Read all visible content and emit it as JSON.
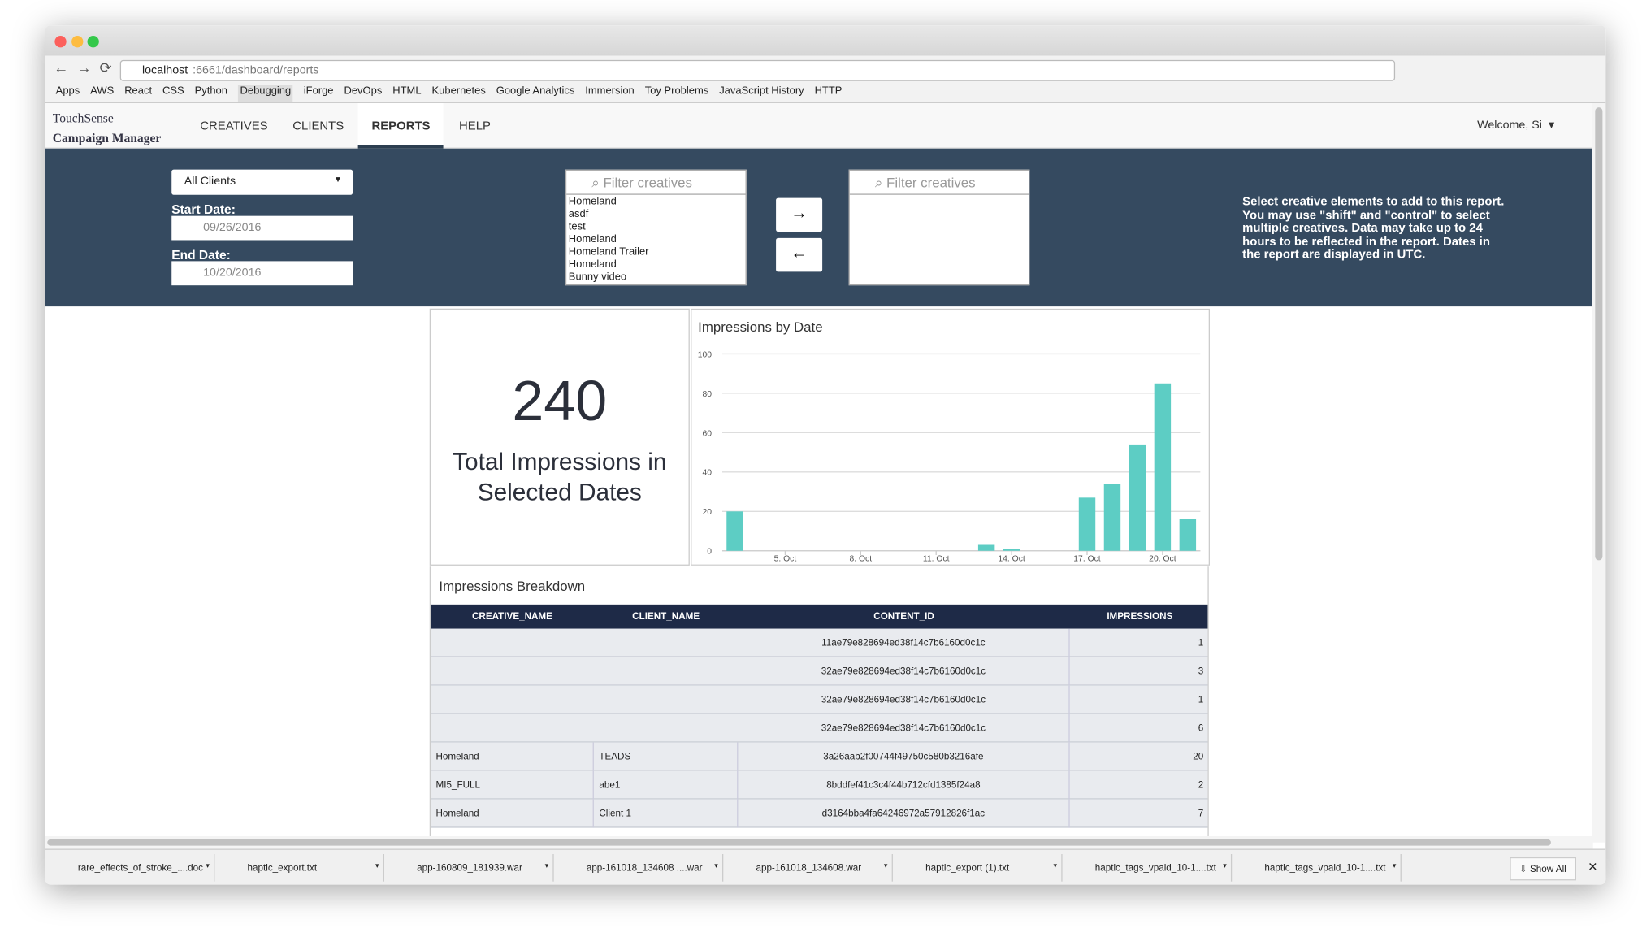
{
  "browser": {
    "url_host": "localhost",
    "url_rest": ":6661/dashboard/reports",
    "bookmarks": [
      "Apps",
      "AWS",
      "React",
      "CSS",
      "Python",
      "Debugging",
      "iForge",
      "DevOps",
      "HTML",
      "Kubernetes",
      "Google Analytics",
      "Immersion",
      "Toy Problems",
      "JavaScript History",
      "HTTP"
    ]
  },
  "app": {
    "brand_1": "TouchSense",
    "brand_2": "Campaign Manager",
    "nav": [
      "CREATIVES",
      "CLIENTS",
      "REPORTS",
      "HELP"
    ],
    "welcome": "Welcome, Si"
  },
  "filters": {
    "client": "All Clients",
    "start_label": "Start Date:",
    "start": "09/26/2016",
    "end_label": "End Date:",
    "end": "10/20/2016",
    "filter_placeholder": "Filter creatives",
    "creatives": [
      "Homeland",
      "asdf",
      "test",
      "Homeland",
      "Homeland Trailer",
      "Homeland",
      "Bunny video"
    ],
    "help": "Select creative elements to add to this report. You may use \"shift\" and \"control\" to select multiple creatives. Data may take up to 24 hours to be reflected in the report. Dates in the report are displayed in UTC."
  },
  "total": {
    "value": 240,
    "label": "Total Impressions in Selected Dates"
  },
  "chart_data": {
    "type": "bar",
    "title": "Impressions by Date",
    "color": "#5dcdc4",
    "grid": true,
    "x": [
      3,
      13,
      14,
      17,
      18,
      19,
      20,
      21
    ],
    "values": [
      20,
      3,
      1,
      27,
      34,
      54,
      85,
      16
    ],
    "xlim": [
      2.5,
      21.5
    ],
    "xticks": [
      {
        "value": 5,
        "label": "5. Oct"
      },
      {
        "value": 8,
        "label": "8. Oct"
      },
      {
        "value": 11,
        "label": "11. Oct"
      },
      {
        "value": 14,
        "label": "14. Oct"
      },
      {
        "value": 17,
        "label": "17. Oct"
      },
      {
        "value": 20,
        "label": "20. Oct"
      }
    ],
    "ylim": [
      0,
      100
    ],
    "yticks": [
      0,
      20,
      40,
      60,
      80,
      100
    ]
  },
  "table": {
    "title": "Impressions Breakdown",
    "columns": [
      "CREATIVE_NAME",
      "CLIENT_NAME",
      "CONTENT_ID",
      "IMPRESSIONS"
    ],
    "rows": [
      [
        null,
        null,
        "11ae79e828694ed38f14c7b6160d0c1c",
        1
      ],
      [
        null,
        null,
        "32ae79e828694ed38f14c7b6160d0c1c",
        3
      ],
      [
        null,
        null,
        "32ae79e828694ed38f14c7b6160d0c1c",
        1
      ],
      [
        null,
        null,
        "32ae79e828694ed38f14c7b6160d0c1c",
        6
      ],
      [
        "Homeland",
        "TEADS",
        "3a26aab2f00744f49750c580b3216afe",
        20
      ],
      [
        "MI5_FULL",
        "abe1",
        "8bddfef41c3c4f44b712cfd1385f24a8",
        2
      ],
      [
        "Homeland",
        "Client 1",
        "d3164bba4fa64246972a57912826f1ac",
        7
      ]
    ]
  },
  "downloads": {
    "items": [
      "rare_effects_of_stroke_....doc",
      "haptic_export.txt",
      "app-160809_181939.war",
      "app-161018_134608 ....war",
      "app-161018_134608.war",
      "haptic_export (1).txt",
      "haptic_tags_vpaid_10-1....txt",
      "haptic_tags_vpaid_10-1....txt"
    ],
    "show_all": "Show All"
  }
}
